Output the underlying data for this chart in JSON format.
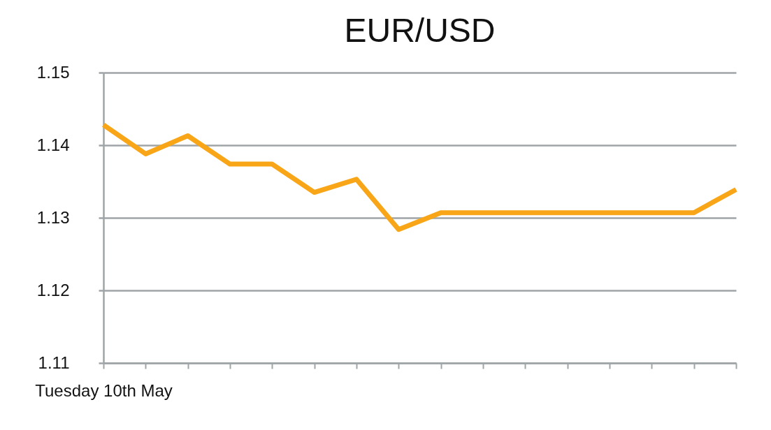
{
  "chart_data": {
    "type": "line",
    "title": "EUR/USD",
    "categories": [
      "Tuesday 10th May",
      null,
      null,
      null,
      null,
      null,
      null,
      null,
      null,
      null,
      null,
      null,
      null,
      null,
      null,
      null
    ],
    "series": [
      {
        "color": "#f8a617",
        "line_style": "solid",
        "values": [
          1.1428,
          1.1388,
          1.1413,
          1.1374,
          1.1374,
          1.1335,
          1.1353,
          1.1284,
          1.1307,
          1.1307,
          1.1307,
          1.1307,
          1.1307,
          1.1307,
          1.1307,
          1.1339
        ]
      }
    ],
    "ylim": [
      1.11,
      1.15
    ],
    "yticks": [
      1.11,
      1.12,
      1.13,
      1.14,
      1.15
    ],
    "grid": "y"
  }
}
